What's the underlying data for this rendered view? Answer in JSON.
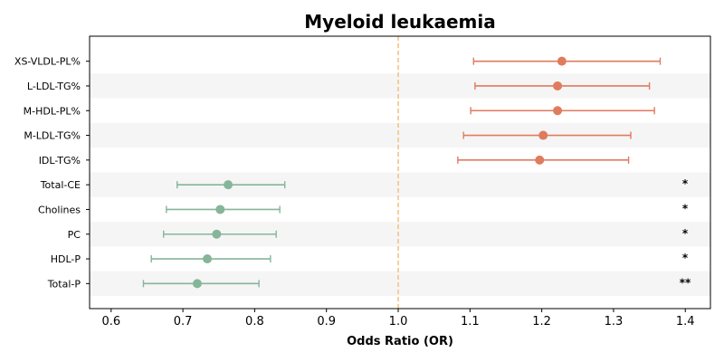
{
  "chart_data": {
    "type": "forest",
    "title": "Myeloid leukaemia",
    "xlabel": "Odds Ratio (OR)",
    "xlim": [
      0.57,
      1.435
    ],
    "xticks": [
      "0.6",
      "0.7",
      "0.8",
      "0.9",
      "1.0",
      "1.1",
      "1.2",
      "1.3",
      "1.4"
    ],
    "reference_line": 1.0,
    "colors": {
      "positive": "#e07b5e",
      "negative": "#86b59a",
      "reference": "#f5c07a",
      "band": "#f5f5f5"
    },
    "rows": [
      {
        "label": "XS-VLDL-PL%",
        "or": 1.228,
        "lower": 1.105,
        "upper": 1.365,
        "sig": ""
      },
      {
        "label": "L-LDL-TG%",
        "or": 1.222,
        "lower": 1.107,
        "upper": 1.35,
        "sig": ""
      },
      {
        "label": "M-HDL-PL%",
        "or": 1.222,
        "lower": 1.101,
        "upper": 1.357,
        "sig": ""
      },
      {
        "label": "M-LDL-TG%",
        "or": 1.202,
        "lower": 1.091,
        "upper": 1.324,
        "sig": ""
      },
      {
        "label": "IDL-TG%",
        "or": 1.197,
        "lower": 1.083,
        "upper": 1.321,
        "sig": ""
      },
      {
        "label": "Total-CE",
        "or": 0.763,
        "lower": 0.692,
        "upper": 0.842,
        "sig": "*"
      },
      {
        "label": "Cholines",
        "or": 0.752,
        "lower": 0.677,
        "upper": 0.835,
        "sig": "*"
      },
      {
        "label": "PC",
        "or": 0.747,
        "lower": 0.673,
        "upper": 0.83,
        "sig": "*"
      },
      {
        "label": "HDL-P",
        "or": 0.734,
        "lower": 0.656,
        "upper": 0.822,
        "sig": "*"
      },
      {
        "label": "Total-P",
        "or": 0.72,
        "lower": 0.645,
        "upper": 0.806,
        "sig": "**"
      }
    ]
  }
}
